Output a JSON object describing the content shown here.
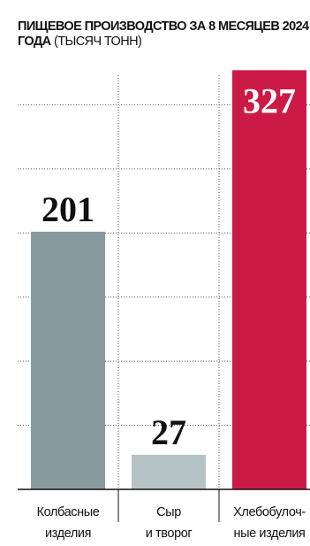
{
  "chart_data": {
    "type": "bar",
    "title": "ПИЩЕВОЕ ПРОИЗВОДСТВО ЗА 8 МЕСЯЦЕВ 2024 ГОДА",
    "unit": "(ТЫСЯЧ ТОНН)",
    "categories": [
      "Колбасные\nизделия",
      "Сыр\nи творог",
      "Хлебобулоч-\nные изделия"
    ],
    "values": [
      201,
      27,
      327
    ],
    "colors": [
      "#879b9f",
      "#b7c4c6",
      "#cc1a47"
    ],
    "ylim": [
      0,
      350
    ],
    "yticks": [
      0,
      50,
      100,
      150,
      200,
      250,
      300
    ],
    "grid": true
  }
}
